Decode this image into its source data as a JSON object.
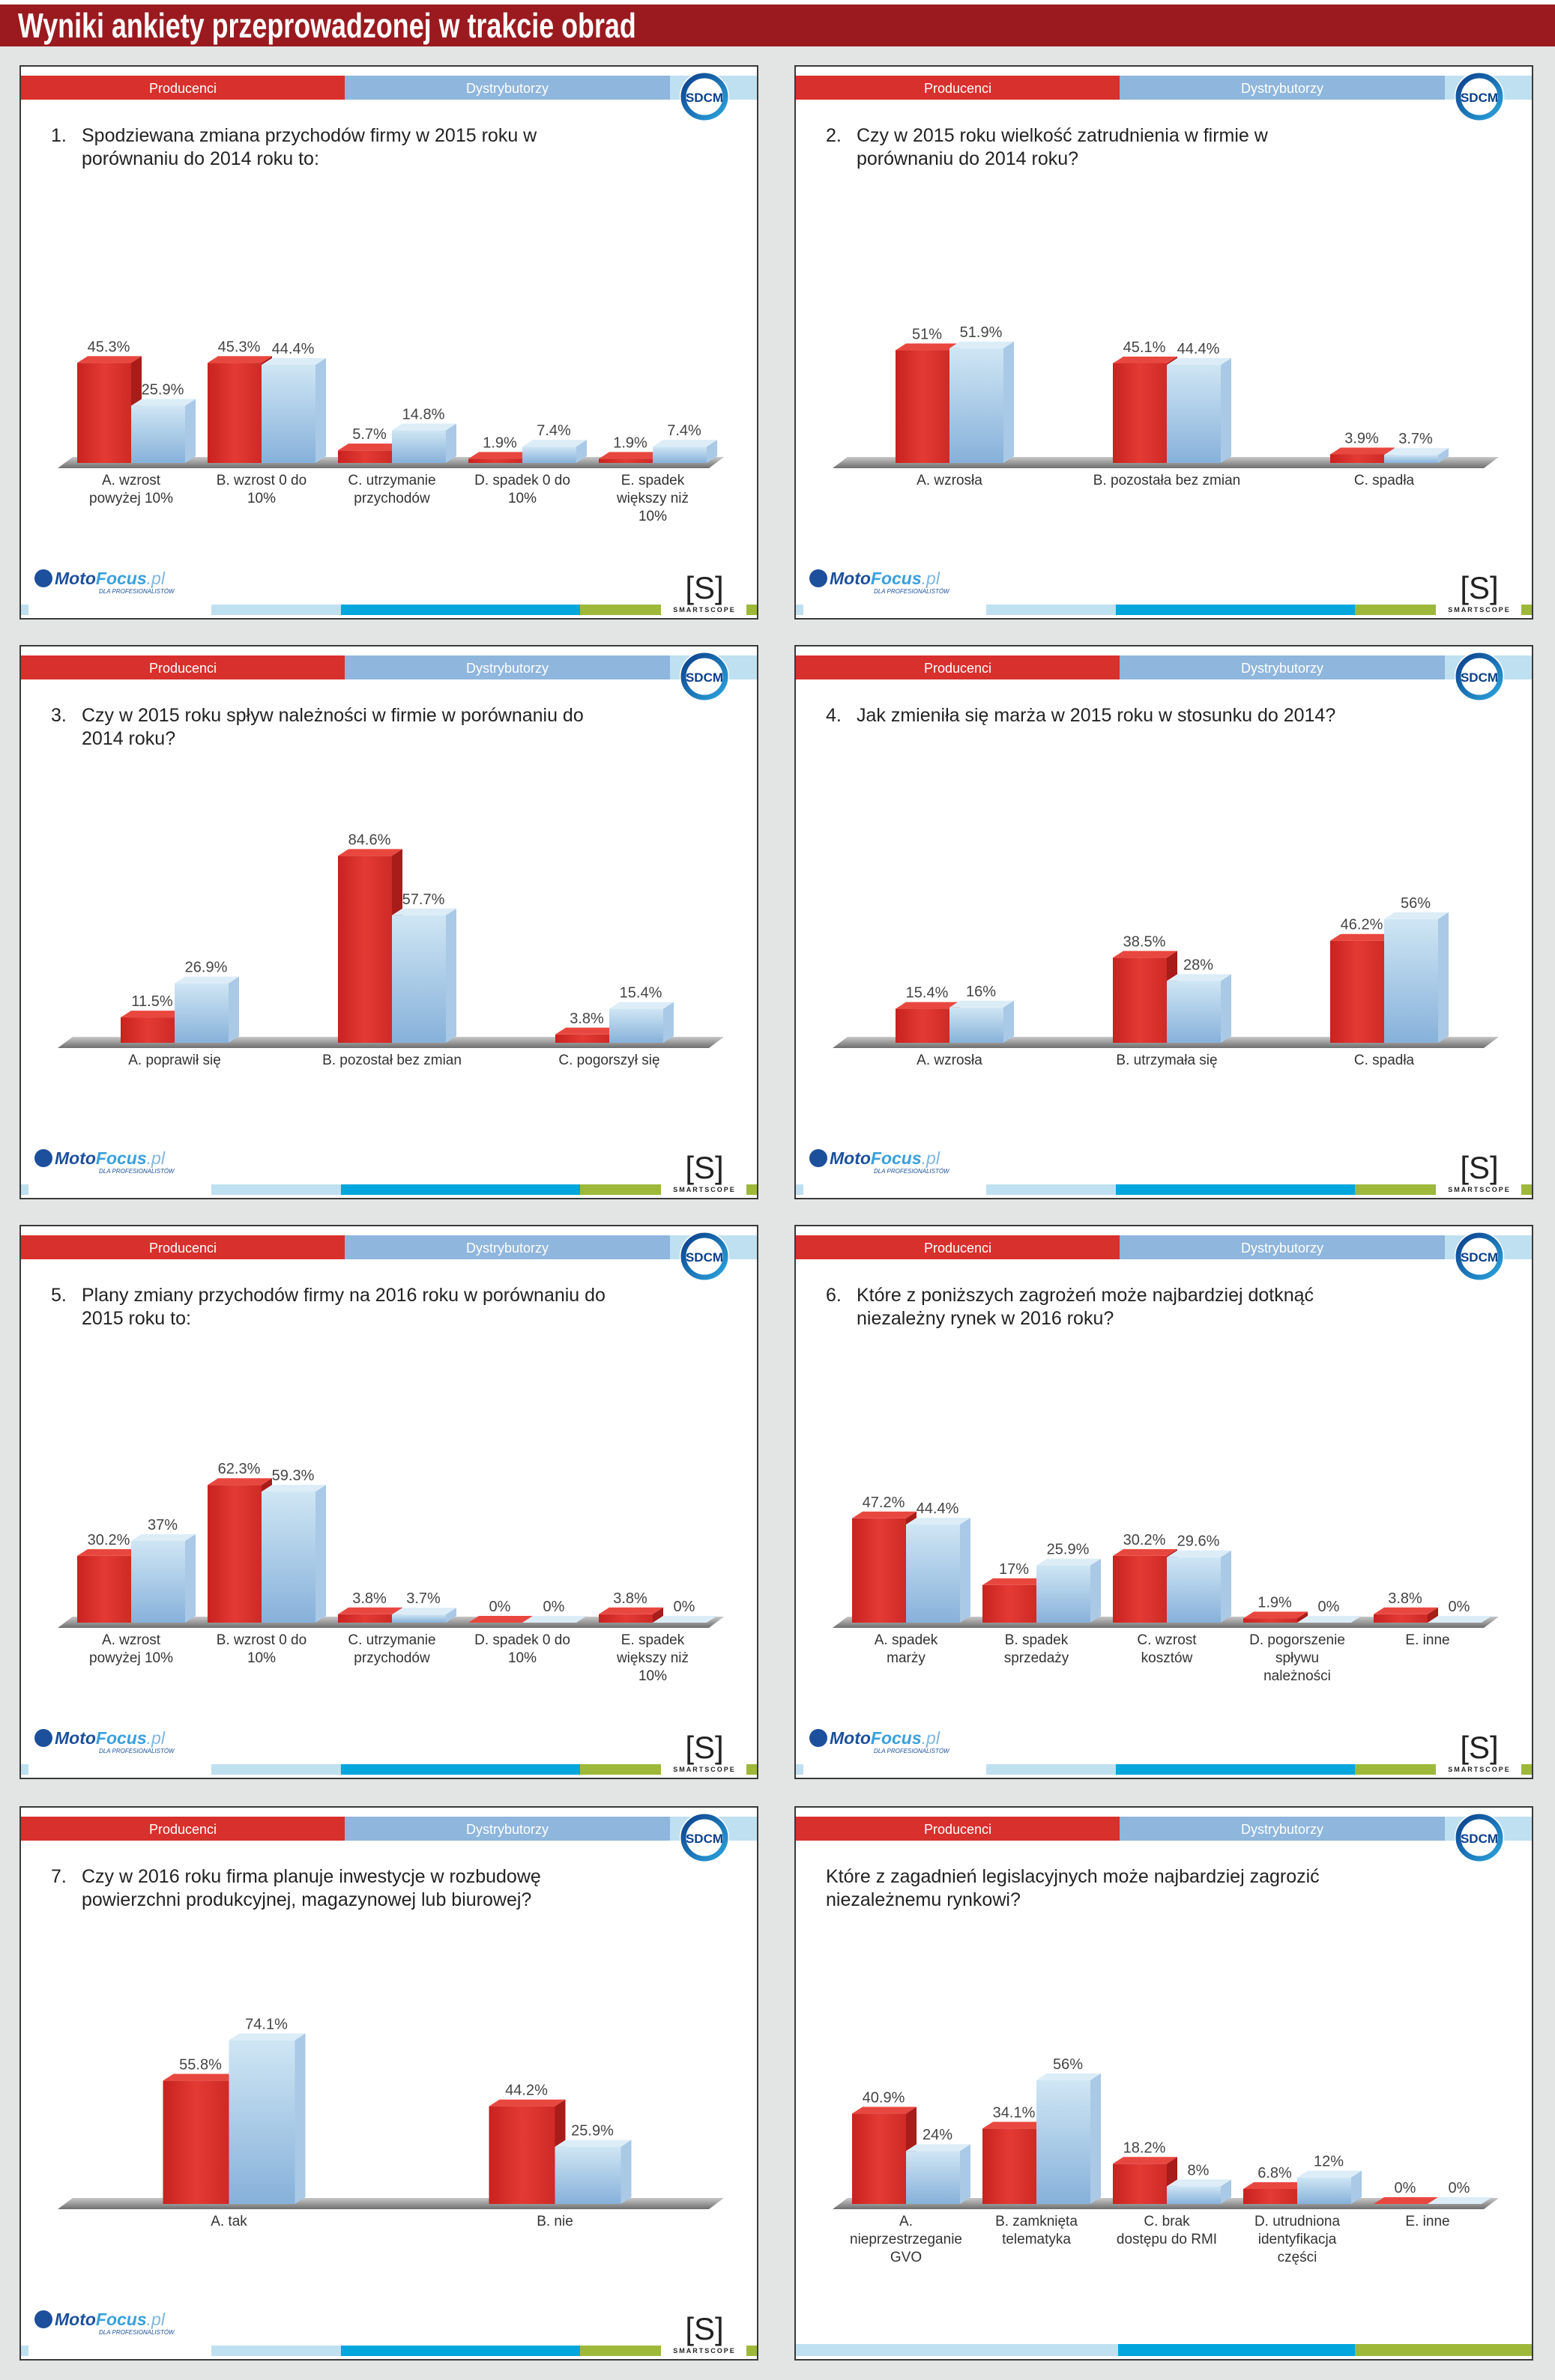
{
  "header": {
    "title": "Wyniki ankiety przeprowadzonej w trakcie obrad"
  },
  "tabs": {
    "producers": "Producenci",
    "distributors": "Dystrybutorzy"
  },
  "logos": {
    "sdcm": "SDCM",
    "motofocus_a": "Moto",
    "motofocus_b": "Focus",
    "motofocus_c": ".pl",
    "motofocus_tag": "DLA PROFESIONALISTÓW",
    "smartscope_mark": "[S]",
    "smartscope_name": "SMARTSCOPE"
  },
  "colors": {
    "producers": "#d8302c",
    "distributors": "#8fb6dc",
    "header": "#9a1a1f"
  },
  "chart_data": [
    {
      "type": "bar",
      "number": "1.",
      "title": "Spodziewana zmiana przychodów firmy w 2015 roku w porównaniu do 2014 roku to:",
      "categories": [
        "A. wzrost powyżej 10%",
        "B. wzrost 0 do 10%",
        "C. utrzymanie przychodów",
        "D. spadek 0 do 10%",
        "E. spadek większy niż 10%"
      ],
      "series": [
        {
          "name": "Producenci",
          "values": [
            45.3,
            45.3,
            5.7,
            1.9,
            1.9
          ]
        },
        {
          "name": "Dystrybutorzy",
          "values": [
            25.9,
            44.4,
            14.8,
            7.4,
            7.4
          ]
        }
      ],
      "unit": "%",
      "footer": true
    },
    {
      "type": "bar",
      "number": "2.",
      "title": "Czy w 2015 roku wielkość zatrudnienia w firmie w porównaniu do 2014 roku?",
      "categories": [
        "A. wzrosła",
        "B. pozostała bez zmian",
        "C. spadła"
      ],
      "series": [
        {
          "name": "Producenci",
          "values": [
            51,
            45.1,
            3.9
          ]
        },
        {
          "name": "Dystrybutorzy",
          "values": [
            51.9,
            44.4,
            3.7
          ]
        }
      ],
      "unit": "%",
      "footer": true
    },
    {
      "type": "bar",
      "number": "3.",
      "title": "Czy w 2015 roku spływ należności w firmie w porównaniu do 2014 roku?",
      "categories": [
        "A. poprawił się",
        "B. pozostał bez zmian",
        "C. pogorszył się"
      ],
      "series": [
        {
          "name": "Producenci",
          "values": [
            11.5,
            84.6,
            3.8
          ]
        },
        {
          "name": "Dystrybutorzy",
          "values": [
            26.9,
            57.7,
            15.4
          ]
        }
      ],
      "unit": "%",
      "footer": true
    },
    {
      "type": "bar",
      "number": "4.",
      "title": "Jak zmieniła się marża w 2015 roku w stosunku do 2014?",
      "categories": [
        "A. wzrosła",
        "B. utrzymała się",
        "C. spadła"
      ],
      "series": [
        {
          "name": "Producenci",
          "values": [
            15.4,
            38.5,
            46.2
          ]
        },
        {
          "name": "Dystrybutorzy",
          "values": [
            16,
            28,
            56
          ]
        }
      ],
      "unit": "%",
      "footer": true
    },
    {
      "type": "bar",
      "number": "5.",
      "title": "Plany zmiany przychodów firmy na 2016 roku w porównaniu do 2015 roku to:",
      "categories": [
        "A. wzrost powyżej 10%",
        "B. wzrost 0 do 10%",
        "C. utrzymanie przychodów",
        "D. spadek 0 do 10%",
        "E. spadek większy niż 10%"
      ],
      "series": [
        {
          "name": "Producenci",
          "values": [
            30.2,
            62.3,
            3.8,
            0,
            3.8
          ]
        },
        {
          "name": "Dystrybutorzy",
          "values": [
            37,
            59.3,
            3.7,
            0,
            0
          ]
        }
      ],
      "unit": "%",
      "footer": true
    },
    {
      "type": "bar",
      "number": "6.",
      "title": "Które z poniższych zagrożeń może najbardziej dotknąć niezależny rynek w 2016 roku?",
      "categories": [
        "A. spadek marży",
        "B. spadek sprzedaży",
        "C. wzrost kosztów",
        "D. pogorszenie spływu należności",
        "E. inne"
      ],
      "series": [
        {
          "name": "Producenci",
          "values": [
            47.2,
            17,
            30.2,
            1.9,
            3.8
          ]
        },
        {
          "name": "Dystrybutorzy",
          "values": [
            44.4,
            25.9,
            29.6,
            0,
            0
          ]
        }
      ],
      "unit": "%",
      "footer": true
    },
    {
      "type": "bar",
      "number": "7.",
      "title": "Czy w 2016 roku firma planuje inwestycje w rozbudowę powierzchni produkcyjnej, magazynowej lub biurowej?",
      "categories": [
        "A. tak",
        "B. nie"
      ],
      "series": [
        {
          "name": "Producenci",
          "values": [
            55.8,
            44.2
          ]
        },
        {
          "name": "Dystrybutorzy",
          "values": [
            74.1,
            25.9
          ]
        }
      ],
      "unit": "%",
      "footer": true
    },
    {
      "type": "bar",
      "number": "",
      "title": "Które z zagadnień legislacyjnych może najbardziej zagrozić niezależnemu rynkowi?",
      "categories": [
        "A. nieprzestrzeganie GVO",
        "B. zamknięta telematyka",
        "C. brak dostępu do RMI",
        "D. utrudniona identyfikacja części",
        "E. inne"
      ],
      "series": [
        {
          "name": "Producenci",
          "values": [
            40.9,
            34.1,
            18.2,
            6.8,
            0
          ]
        },
        {
          "name": "Dystrybutorzy",
          "values": [
            24,
            56,
            8,
            12,
            0
          ]
        }
      ],
      "unit": "%",
      "footer": false
    }
  ]
}
